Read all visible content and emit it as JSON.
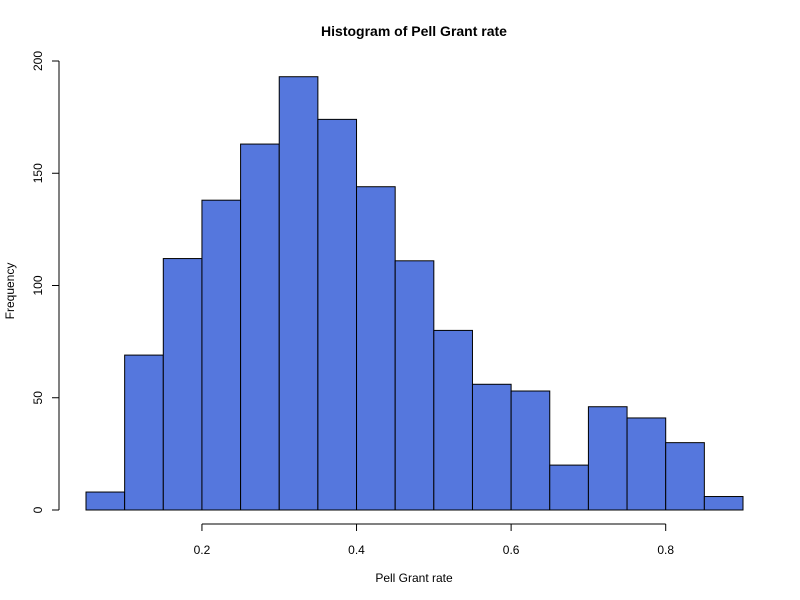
{
  "chart_data": {
    "type": "bar",
    "title": "Histogram of Pell Grant rate",
    "xlabel": "Pell Grant rate",
    "ylabel": "Frequency",
    "bar_color": "#5577DD",
    "bin_edges": [
      0.05,
      0.1,
      0.15,
      0.2,
      0.25,
      0.3,
      0.35,
      0.4,
      0.45,
      0.5,
      0.55,
      0.6,
      0.65,
      0.7,
      0.75,
      0.8,
      0.85,
      0.9
    ],
    "values": [
      8,
      69,
      112,
      138,
      163,
      193,
      174,
      144,
      111,
      80,
      56,
      53,
      20,
      46,
      41,
      30,
      6
    ],
    "xlim": [
      0.05,
      0.9
    ],
    "ylim": [
      0,
      200
    ],
    "x_ticks": [
      0.2,
      0.4,
      0.6,
      0.8
    ],
    "x_tick_labels": [
      "0.2",
      "0.4",
      "0.6",
      "0.8"
    ],
    "y_ticks": [
      0,
      50,
      100,
      150,
      200
    ],
    "y_tick_labels": [
      "0",
      "50",
      "100",
      "150",
      "200"
    ],
    "grid": false,
    "legend": "none"
  }
}
